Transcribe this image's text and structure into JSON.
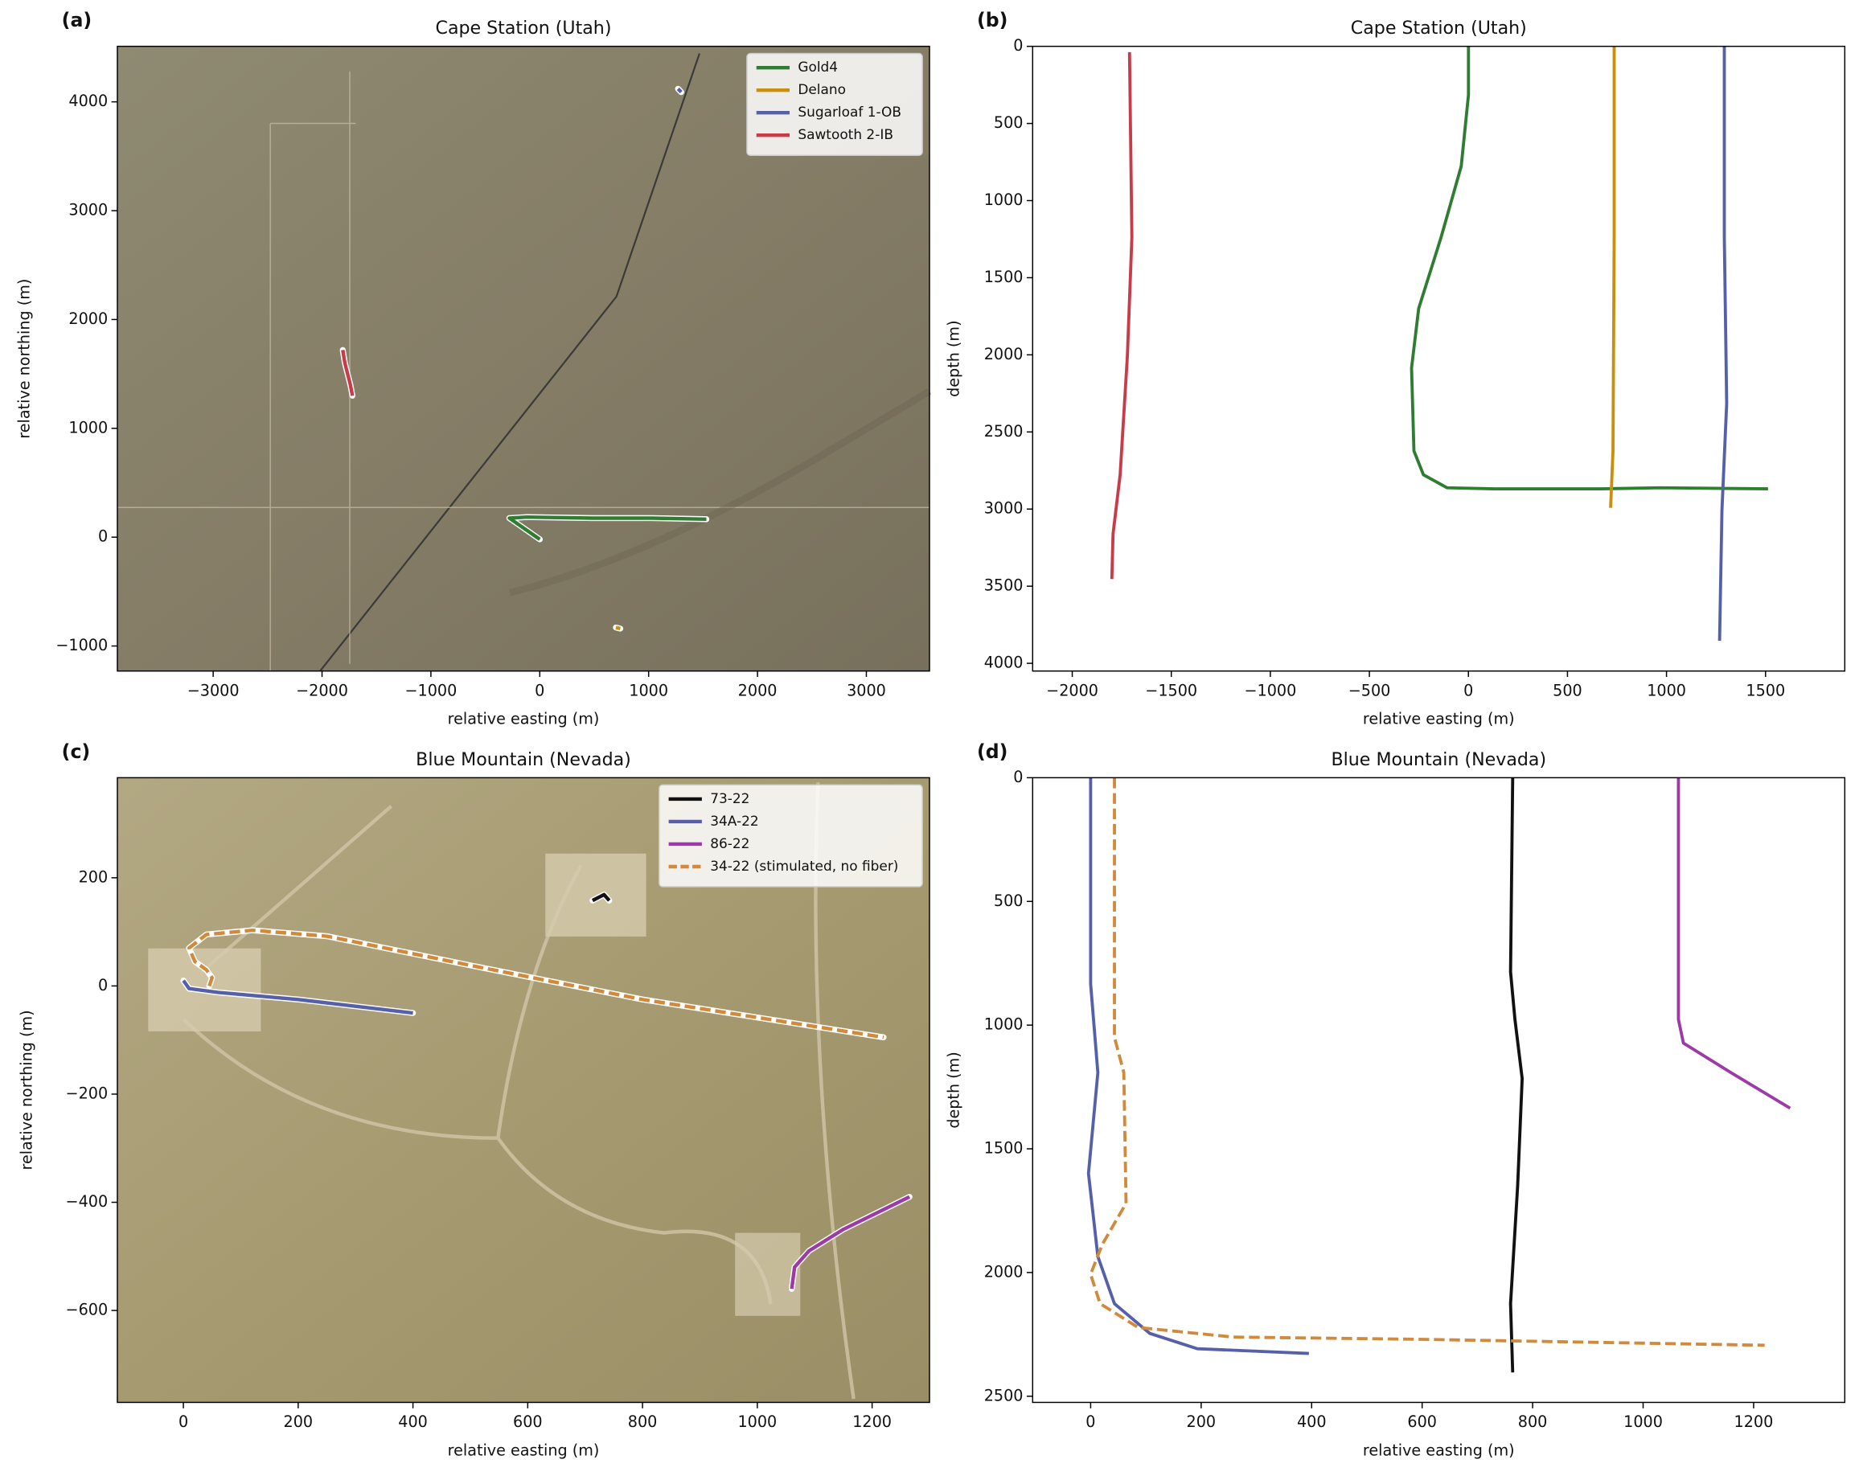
{
  "chart_data": [
    {
      "type": "line",
      "panel_label": "(a)",
      "title": "Cape Station (Utah)",
      "xlabel": "relative easting (m)",
      "ylabel": "relative northing (m)",
      "xlim": [
        -3880,
        3580
      ],
      "ylim": [
        -1230,
        4510
      ],
      "xticks": [
        {
          "value": -3000,
          "label": "−3000"
        },
        {
          "value": -2000,
          "label": "−2000"
        },
        {
          "value": -1000,
          "label": "−1000"
        },
        0,
        1000,
        2000,
        3000
      ],
      "yticks": [
        {
          "value": -1000,
          "label": "−1000"
        },
        0,
        1000,
        2000,
        3000,
        4000
      ],
      "legend": "upper right",
      "series": [
        {
          "name": "Gold4",
          "color": "#2e7d32",
          "x": [
            0,
            -280,
            -120,
            485,
            1030,
            1530
          ],
          "y": [
            -20,
            175,
            185,
            175,
            175,
            165
          ]
        },
        {
          "name": "Delano",
          "color": "#c8900e",
          "x": [
            700,
            740
          ],
          "y": [
            -830,
            -840
          ]
        },
        {
          "name": "Sugarloaf 1-OB",
          "color": "#5560a8",
          "x": [
            1270,
            1300
          ],
          "y": [
            4120,
            4090
          ]
        },
        {
          "name": "Sawtooth 2-IB",
          "color": "#c83c4a",
          "x": [
            -1810,
            -1790,
            -1740,
            -1720
          ],
          "y": [
            1720,
            1600,
            1400,
            1300
          ]
        }
      ]
    },
    {
      "type": "line",
      "panel_label": "(b)",
      "title": "Cape Station (Utah)",
      "xlabel": "relative easting (m)",
      "ylabel": "depth (m)",
      "xlim": [
        -2200,
        1900
      ],
      "ylim": [
        4050,
        0
      ],
      "xticks": [
        {
          "value": -2000,
          "label": "−2000"
        },
        {
          "value": -1500,
          "label": "−1500"
        },
        {
          "value": -1000,
          "label": "−1000"
        },
        {
          "value": -500,
          "label": "−500"
        },
        0,
        500,
        1000,
        1500
      ],
      "yticks": [
        0,
        500,
        1000,
        1500,
        2000,
        2500,
        3000,
        3500,
        4000
      ],
      "series": [
        {
          "color": "#2e7d32",
          "x": [
            0,
            0,
            -36,
            -138,
            -251,
            -287,
            -275,
            -227,
            -108,
            132,
            670,
            969,
            1513
          ],
          "y": [
            0,
            315,
            777,
            1238,
            1700,
            2085,
            2623,
            2777,
            2862,
            2869,
            2869,
            2862,
            2869
          ]
        },
        {
          "color": "#c8900e",
          "x": [
            736,
            736,
            730,
            718
          ],
          "y": [
            0,
            1238,
            2623,
            2992
          ]
        },
        {
          "color": "#5560a8",
          "x": [
            1292,
            1292,
            1304,
            1280,
            1268
          ],
          "y": [
            0,
            1238,
            2315,
            3008,
            3854
          ]
        },
        {
          "color": "#c83c4a",
          "x": [
            -1711,
            -1699,
            -1722,
            -1758,
            -1794,
            -1800
          ],
          "y": [
            38,
            1238,
            2008,
            2777,
            3162,
            3454
          ]
        }
      ]
    },
    {
      "type": "line",
      "panel_label": "(c)",
      "title": "Blue Mountain (Nevada)",
      "xlabel": "relative easting (m)",
      "ylabel": "relative northing (m)",
      "xlim": [
        -115,
        1300
      ],
      "ylim": [
        -770,
        385
      ],
      "xticks": [
        0,
        200,
        400,
        600,
        800,
        1000,
        1200
      ],
      "yticks": [
        {
          "value": -600,
          "label": "−600"
        },
        {
          "value": -400,
          "label": "−400"
        },
        {
          "value": -200,
          "label": "−200"
        },
        0,
        200
      ],
      "legend": "upper right",
      "series": [
        {
          "name": "73-22",
          "color": "#111111",
          "x": [
            713,
            733,
            742
          ],
          "y": [
            158,
            169,
            158
          ]
        },
        {
          "name": "34A-22",
          "color": "#5560a8",
          "x": [
            0,
            10,
            60,
            200,
            400
          ],
          "y": [
            10,
            -5,
            -12,
            -25,
            -50
          ]
        },
        {
          "name": "86-22",
          "color": "#9c3aa8",
          "x": [
            1060,
            1065,
            1090,
            1150,
            1265
          ],
          "y": [
            -560,
            -520,
            -490,
            -450,
            -390
          ]
        },
        {
          "name": "34-22 (stimulated, no fiber)",
          "color": "#d08a3c",
          "linestyle": "dashed",
          "x": [
            45,
            50,
            40,
            20,
            10,
            40,
            120,
            250,
            500,
            800,
            1220
          ],
          "y": [
            0,
            15,
            30,
            45,
            70,
            95,
            103,
            92,
            38,
            -25,
            -95
          ]
        }
      ]
    },
    {
      "type": "line",
      "panel_label": "(d)",
      "title": "Blue Mountain (Nevada)",
      "xlabel": "relative easting (m)",
      "ylabel": "depth (m)",
      "xlim": [
        -105,
        1365
      ],
      "ylim": [
        2525,
        0
      ],
      "xticks": [
        0,
        200,
        400,
        600,
        800,
        1000,
        1200
      ],
      "yticks": [
        0,
        500,
        1000,
        1500,
        2000,
        2500
      ],
      "series": [
        {
          "color": "#111111",
          "x": [
            764,
            760,
            768,
            781,
            773,
            760,
            764
          ],
          "y": [
            0,
            785,
            977,
            1216,
            1648,
            2126,
            2404
          ]
        },
        {
          "color": "#5560a8",
          "x": [
            0,
            0,
            13,
            -4,
            13,
            43,
            107,
            193,
            395
          ],
          "y": [
            0,
            833,
            1192,
            1600,
            1935,
            2126,
            2246,
            2308,
            2327
          ]
        },
        {
          "color": "#9c3aa8",
          "x": [
            1064,
            1064,
            1073,
            1159,
            1266
          ],
          "y": [
            0,
            977,
            1073,
            1192,
            1336
          ]
        },
        {
          "color": "#d08a3c",
          "linestyle": "dashed",
          "x": [
            43,
            43,
            60,
            64,
            21,
            0,
            17,
            86,
            258,
            601,
            1220
          ],
          "y": [
            0,
            1049,
            1192,
            1720,
            1887,
            2007,
            2126,
            2222,
            2261,
            2270,
            2294
          ]
        }
      ]
    }
  ]
}
